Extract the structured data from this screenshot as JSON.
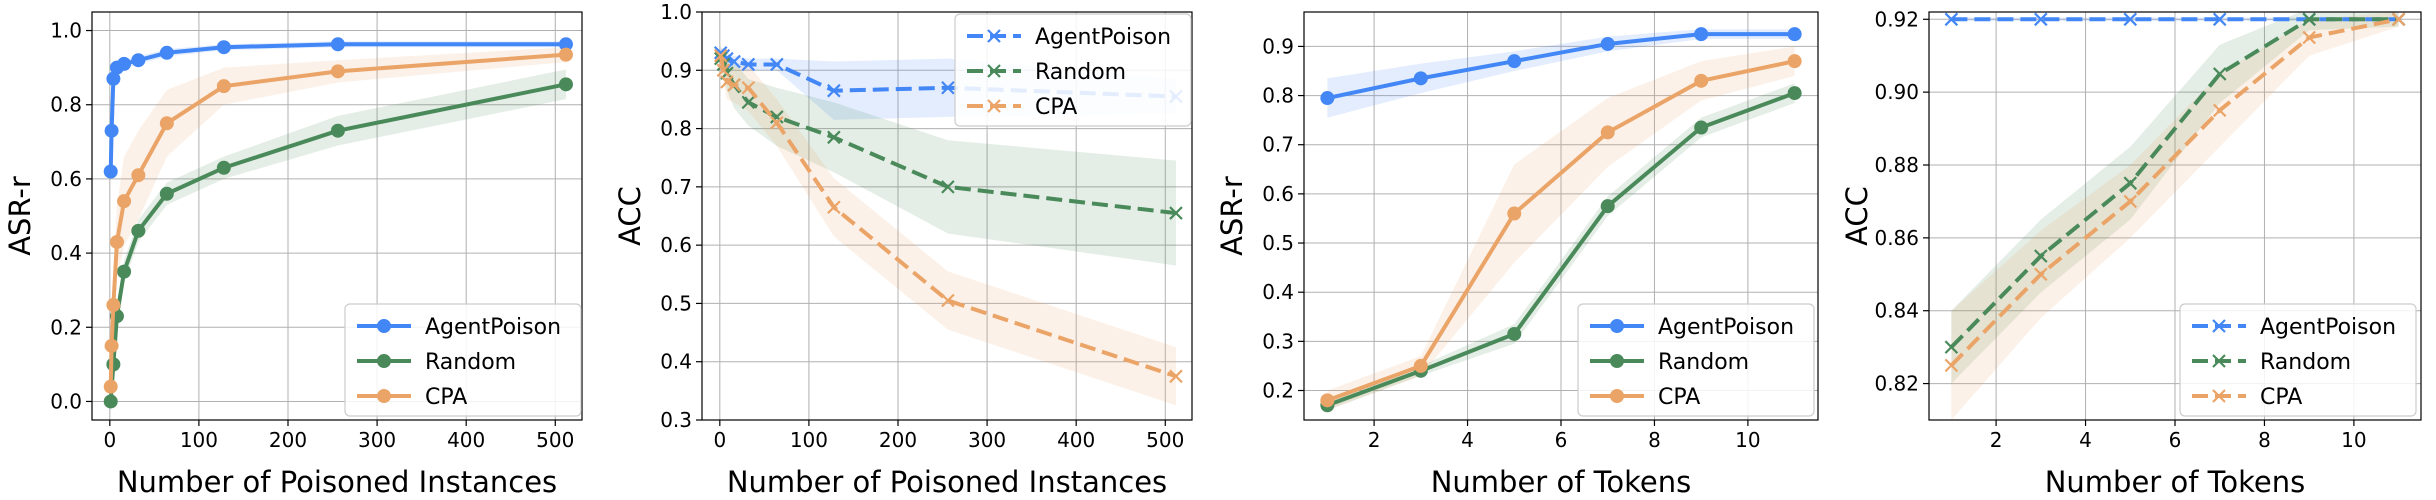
{
  "chart_data": [
    {
      "type": "line",
      "xlabel": "Number of Poisoned Instances",
      "ylabel": "ASR-r",
      "xlim": [
        -20,
        530
      ],
      "ylim": [
        -0.05,
        1.05
      ],
      "xticks": [
        0,
        100,
        200,
        300,
        400,
        500
      ],
      "xtick_labels": [
        "0",
        "100",
        "200",
        "300",
        "400",
        "500"
      ],
      "yticks": [
        0.0,
        0.2,
        0.4,
        0.6,
        0.8,
        1.0
      ],
      "ytick_labels": [
        "0.0",
        "0.2",
        "0.4",
        "0.6",
        "0.8",
        "1.0"
      ],
      "grid": true,
      "legend_position": "bottom-right",
      "series": [
        {
          "name": "AgentPoison",
          "color": "#4287f5",
          "marker": "circle",
          "dashed": false,
          "x": [
            1,
            2,
            4,
            8,
            16,
            32,
            64,
            128,
            256,
            512
          ],
          "y": [
            0.62,
            0.73,
            0.87,
            0.9,
            0.91,
            0.92,
            0.94,
            0.955,
            0.963,
            0.963
          ],
          "band": [
            0.015,
            0.015,
            0.015,
            0.012,
            0.012,
            0.01,
            0.01,
            0.008,
            0.008,
            0.008
          ]
        },
        {
          "name": "Random",
          "color": "#4a8a5a",
          "marker": "circle",
          "dashed": false,
          "x": [
            1,
            4,
            8,
            16,
            32,
            64,
            128,
            256,
            512
          ],
          "y": [
            0.0,
            0.1,
            0.23,
            0.35,
            0.46,
            0.56,
            0.63,
            0.73,
            0.855
          ],
          "band": [
            0.01,
            0.03,
            0.03,
            0.03,
            0.03,
            0.03,
            0.03,
            0.04,
            0.04
          ]
        },
        {
          "name": "CPA",
          "color": "#eba467",
          "marker": "circle",
          "dashed": false,
          "x": [
            1,
            2,
            4,
            8,
            16,
            32,
            64,
            128,
            256,
            512
          ],
          "y": [
            0.04,
            0.15,
            0.26,
            0.43,
            0.54,
            0.61,
            0.75,
            0.85,
            0.89,
            0.935
          ],
          "band": [
            0.02,
            0.05,
            0.08,
            0.1,
            0.12,
            0.12,
            0.09,
            0.05,
            0.03,
            0.02
          ]
        }
      ]
    },
    {
      "type": "line",
      "xlabel": "Number of Poisoned Instances",
      "ylabel": "ACC",
      "xlim": [
        -20,
        530
      ],
      "ylim": [
        0.3,
        1.0
      ],
      "xticks": [
        0,
        100,
        200,
        300,
        400,
        500
      ],
      "xtick_labels": [
        "0",
        "100",
        "200",
        "300",
        "400",
        "500"
      ],
      "yticks": [
        0.3,
        0.4,
        0.5,
        0.6,
        0.7,
        0.8,
        0.9,
        1.0
      ],
      "ytick_labels": [
        "0.3",
        "0.4",
        "0.5",
        "0.6",
        "0.7",
        "0.8",
        "0.9",
        "1.0"
      ],
      "grid": true,
      "legend_position": "top-right",
      "series": [
        {
          "name": "AgentPoison",
          "color": "#4287f5",
          "marker": "x",
          "dashed": true,
          "x": [
            1,
            4,
            8,
            16,
            32,
            64,
            128,
            256,
            512
          ],
          "y": [
            0.93,
            0.925,
            0.92,
            0.915,
            0.91,
            0.91,
            0.865,
            0.87,
            0.855
          ],
          "band": [
            0.01,
            0.01,
            0.01,
            0.01,
            0.01,
            0.01,
            0.05,
            0.05,
            0.03
          ]
        },
        {
          "name": "Random",
          "color": "#4a8a5a",
          "marker": "x",
          "dashed": true,
          "x": [
            1,
            4,
            8,
            16,
            32,
            64,
            128,
            256,
            512
          ],
          "y": [
            0.92,
            0.91,
            0.895,
            0.875,
            0.845,
            0.82,
            0.785,
            0.7,
            0.655
          ],
          "band": [
            0.02,
            0.02,
            0.03,
            0.04,
            0.04,
            0.05,
            0.06,
            0.08,
            0.09
          ]
        },
        {
          "name": "CPA",
          "color": "#eba467",
          "marker": "x",
          "dashed": true,
          "x": [
            1,
            4,
            8,
            16,
            32,
            64,
            128,
            256,
            512
          ],
          "y": [
            0.925,
            0.9,
            0.88,
            0.875,
            0.87,
            0.81,
            0.665,
            0.505,
            0.375
          ],
          "band": [
            0.02,
            0.02,
            0.03,
            0.03,
            0.04,
            0.04,
            0.05,
            0.05,
            0.05
          ]
        }
      ]
    },
    {
      "type": "line",
      "xlabel": "Number of Tokens",
      "ylabel": "ASR-r",
      "xlim": [
        0.5,
        11.5
      ],
      "ylim": [
        0.14,
        0.97
      ],
      "xticks": [
        2,
        4,
        6,
        8,
        10
      ],
      "xtick_labels": [
        "2",
        "4",
        "6",
        "8",
        "10"
      ],
      "yticks": [
        0.2,
        0.3,
        0.4,
        0.5,
        0.6,
        0.7,
        0.8,
        0.9
      ],
      "ytick_labels": [
        "0.2",
        "0.3",
        "0.4",
        "0.5",
        "0.6",
        "0.7",
        "0.8",
        "0.9"
      ],
      "grid": true,
      "legend_position": "bottom-right",
      "series": [
        {
          "name": "AgentPoison",
          "color": "#4287f5",
          "marker": "circle",
          "dashed": false,
          "x": [
            1,
            3,
            5,
            7,
            9,
            11
          ],
          "y": [
            0.795,
            0.835,
            0.87,
            0.905,
            0.925,
            0.925
          ],
          "band": [
            0.04,
            0.03,
            0.02,
            0.015,
            0.01,
            0.01
          ]
        },
        {
          "name": "Random",
          "color": "#4a8a5a",
          "marker": "circle",
          "dashed": false,
          "x": [
            1,
            3,
            5,
            7,
            9,
            11
          ],
          "y": [
            0.17,
            0.24,
            0.315,
            0.575,
            0.735,
            0.805
          ],
          "band": [
            0.01,
            0.01,
            0.02,
            0.02,
            0.02,
            0.02
          ]
        },
        {
          "name": "CPA",
          "color": "#eba467",
          "marker": "circle",
          "dashed": false,
          "x": [
            1,
            3,
            5,
            7,
            9,
            11
          ],
          "y": [
            0.18,
            0.25,
            0.56,
            0.725,
            0.83,
            0.87
          ],
          "band": [
            0.02,
            0.02,
            0.1,
            0.07,
            0.04,
            0.03
          ]
        }
      ]
    },
    {
      "type": "line",
      "xlabel": "Number of Tokens",
      "ylabel": "ACC",
      "xlim": [
        0.5,
        11.5
      ],
      "ylim": [
        0.81,
        0.922
      ],
      "xticks": [
        2,
        4,
        6,
        8,
        10
      ],
      "xtick_labels": [
        "2",
        "4",
        "6",
        "8",
        "10"
      ],
      "yticks": [
        0.82,
        0.84,
        0.86,
        0.88,
        0.9,
        0.92
      ],
      "ytick_labels": [
        "0.82",
        "0.84",
        "0.86",
        "0.88",
        "0.90",
        "0.92"
      ],
      "grid": true,
      "legend_position": "bottom-right",
      "series": [
        {
          "name": "AgentPoison",
          "color": "#4287f5",
          "marker": "x",
          "dashed": true,
          "x": [
            1,
            3,
            5,
            7,
            9,
            11
          ],
          "y": [
            0.92,
            0.92,
            0.92,
            0.92,
            0.92,
            0.92
          ],
          "band": [
            0.0005,
            0.0005,
            0.0005,
            0.0005,
            0.0005,
            0.0005
          ]
        },
        {
          "name": "Random",
          "color": "#4a8a5a",
          "marker": "x",
          "dashed": true,
          "x": [
            1,
            3,
            5,
            7,
            9,
            11
          ],
          "y": [
            0.83,
            0.855,
            0.875,
            0.905,
            0.92,
            0.92
          ],
          "band": [
            0.01,
            0.01,
            0.01,
            0.008,
            0.003,
            0.002
          ]
        },
        {
          "name": "CPA",
          "color": "#eba467",
          "marker": "x",
          "dashed": true,
          "x": [
            1,
            3,
            5,
            7,
            9,
            11
          ],
          "y": [
            0.825,
            0.85,
            0.87,
            0.895,
            0.915,
            0.92
          ],
          "band": [
            0.015,
            0.012,
            0.01,
            0.01,
            0.005,
            0.002
          ]
        }
      ]
    }
  ]
}
